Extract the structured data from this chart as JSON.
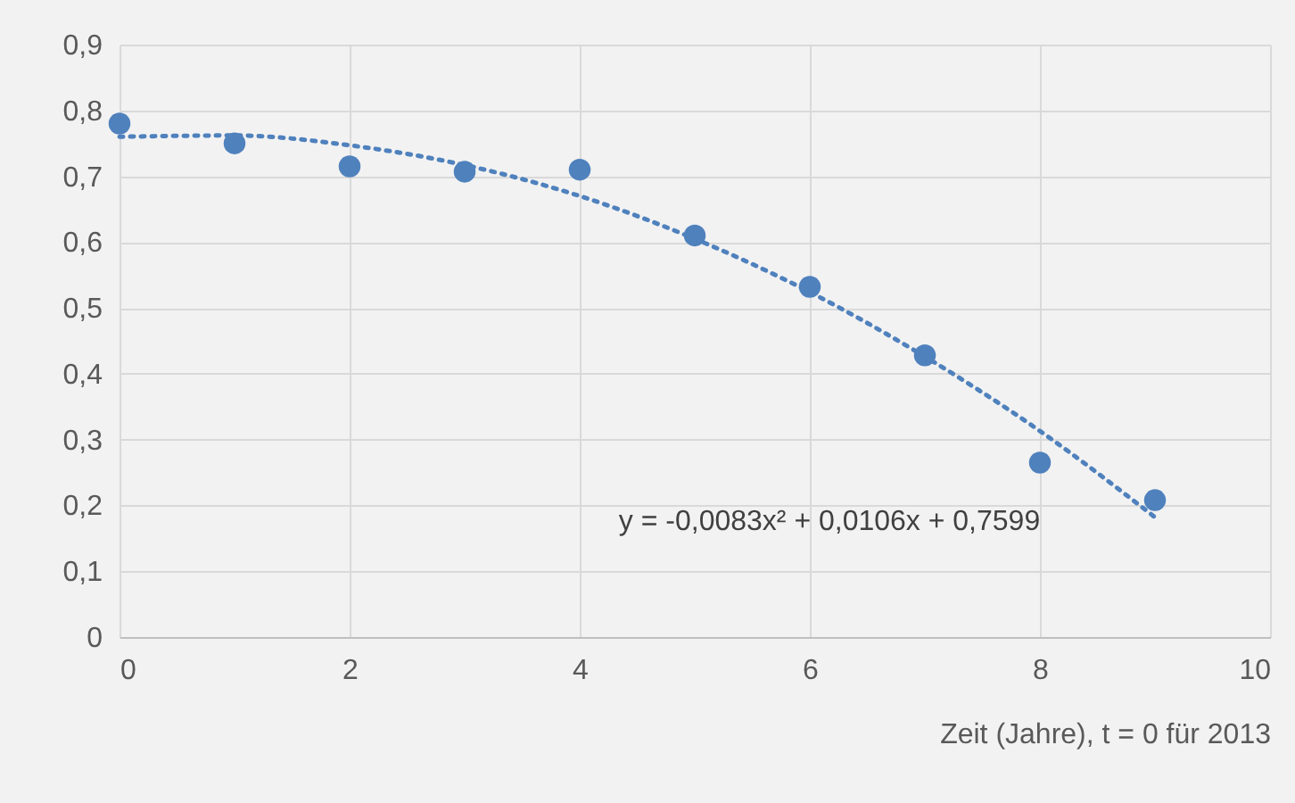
{
  "chart_data": {
    "type": "scatter",
    "xlabel": "Zeit (Jahre), t = 0 für 2013",
    "xlim": [
      0,
      10
    ],
    "xticks": [
      0,
      2,
      4,
      6,
      8,
      10
    ],
    "ylim": [
      0,
      0.9
    ],
    "yticks": [
      {
        "value": 0,
        "label": "0"
      },
      {
        "value": 0.1,
        "label": "0,1"
      },
      {
        "value": 0.2,
        "label": "0,2"
      },
      {
        "value": 0.3,
        "label": "0,3"
      },
      {
        "value": 0.4,
        "label": "0,4"
      },
      {
        "value": 0.5,
        "label": "0,5"
      },
      {
        "value": 0.6,
        "label": "0,6"
      },
      {
        "value": 0.7,
        "label": "0,7"
      },
      {
        "value": 0.8,
        "label": "0,8"
      },
      {
        "value": 0.9,
        "label": "0,9"
      }
    ],
    "grid": true,
    "series": [
      {
        "marker": "circle",
        "color": "#4f81bd",
        "x": [
          0,
          1,
          2,
          3,
          4,
          5,
          6,
          7,
          8,
          9
        ],
        "values": [
          0.78,
          0.75,
          0.715,
          0.707,
          0.71,
          0.61,
          0.532,
          0.428,
          0.265,
          0.208
        ]
      },
      {
        "type": "line",
        "line_style": "dotted",
        "color": "#4f81bd",
        "x": [
          0,
          1,
          2,
          3,
          4,
          5,
          6,
          7,
          8,
          9
        ],
        "values": [
          0.76,
          0.762,
          0.747,
          0.717,
          0.67,
          0.605,
          0.524,
          0.426,
          0.313,
          0.182
        ]
      }
    ],
    "annotations": [
      "y = -0,0083x² + 0,0106x + 0,7599"
    ]
  }
}
